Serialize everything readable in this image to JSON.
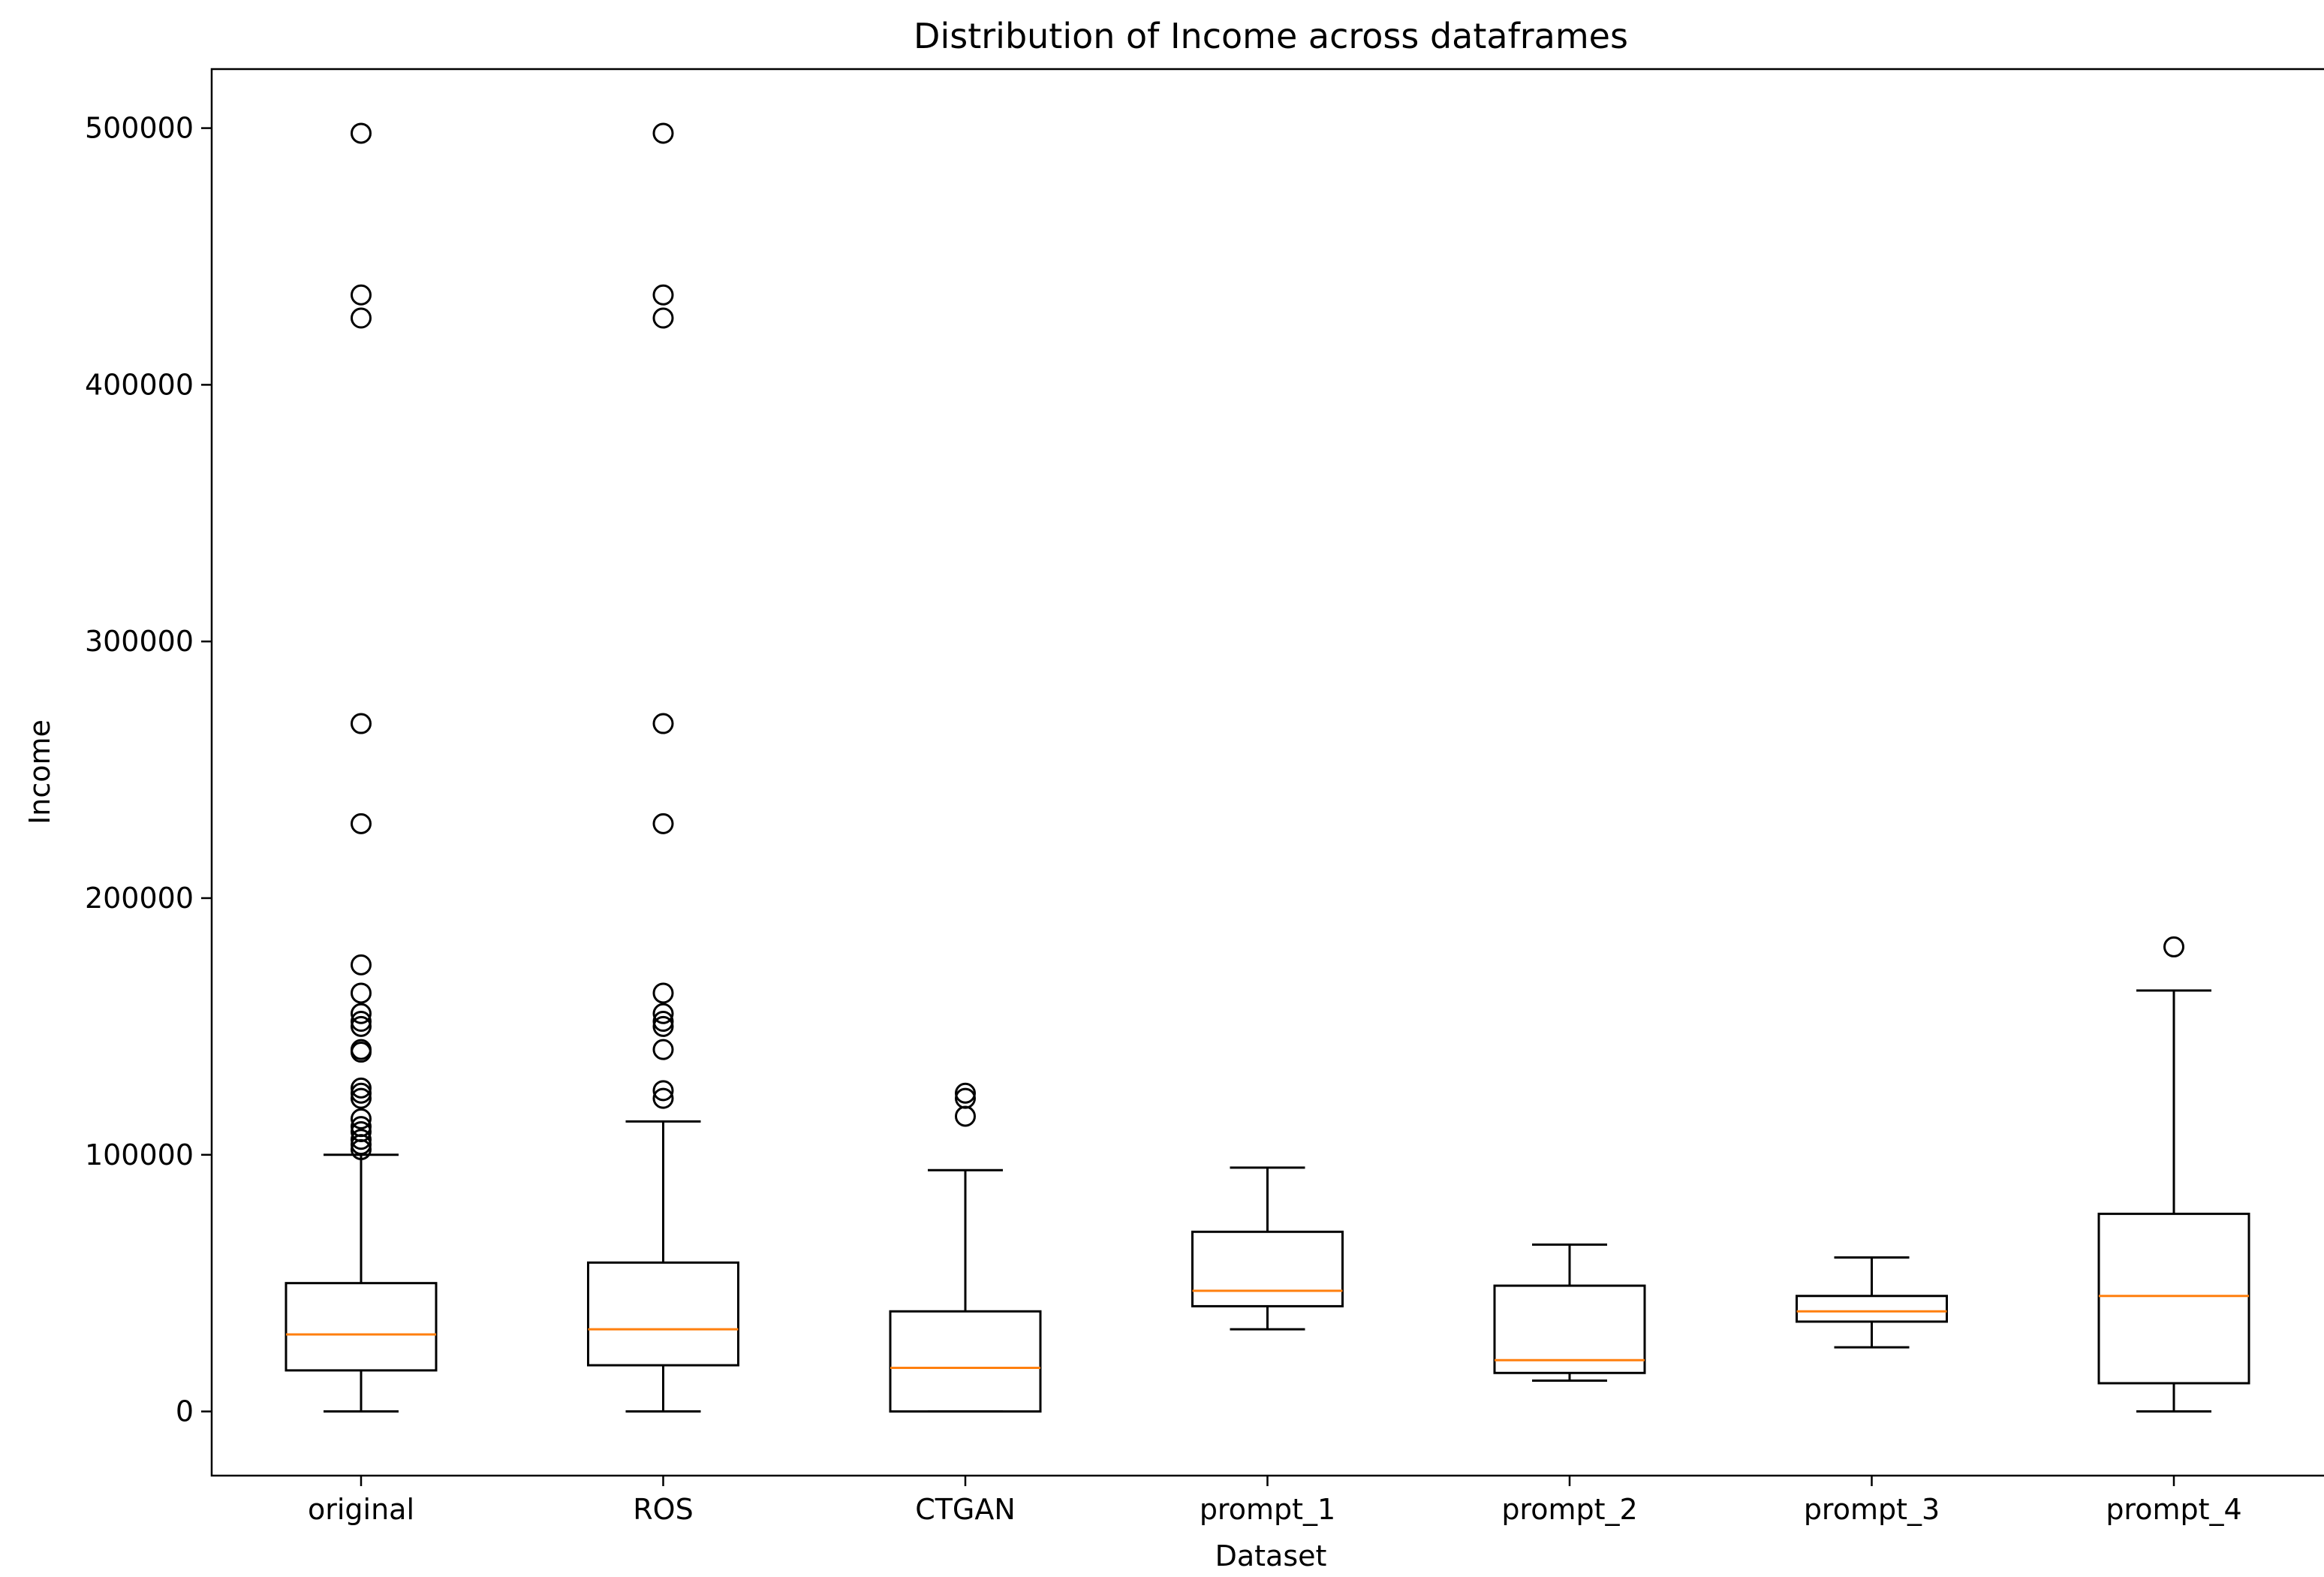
{
  "chart_data": {
    "type": "box",
    "title": "Distribution of Income across dataframes",
    "xlabel": "Dataset",
    "ylabel": "Income",
    "ylim": [
      -25000,
      523000
    ],
    "yticks": [
      0,
      100000,
      200000,
      300000,
      400000,
      500000
    ],
    "ytick_labels": [
      "0",
      "100000",
      "200000",
      "300000",
      "400000",
      "500000"
    ],
    "grid": false,
    "colors": {
      "box": "#000000",
      "median": "#ff7f0e"
    },
    "categories": [
      "original",
      "ROS",
      "CTGAN",
      "prompt_1",
      "prompt_2",
      "prompt_3",
      "prompt_4"
    ],
    "boxes": [
      {
        "label": "original",
        "whisker_low": 0,
        "q1": 16000,
        "median": 30000,
        "q3": 50000,
        "whisker_high": 100000,
        "outliers": [
          498000,
          435000,
          426000,
          268000,
          229000,
          174000,
          163000,
          155000,
          152000,
          150000,
          141000,
          140000,
          126000,
          124000,
          122000,
          114000,
          111000,
          109000,
          106000,
          104000,
          102000
        ]
      },
      {
        "label": "ROS",
        "whisker_low": 0,
        "q1": 18000,
        "median": 32000,
        "q3": 58000,
        "whisker_high": 113000,
        "outliers": [
          498000,
          435000,
          426000,
          268000,
          229000,
          163000,
          155000,
          152000,
          150000,
          141000,
          125000,
          122000
        ]
      },
      {
        "label": "CTGAN",
        "whisker_low": 0,
        "q1": 0,
        "median": 17000,
        "q3": 39000,
        "whisker_high": 94000,
        "outliers": [
          124000,
          122000,
          115000
        ]
      },
      {
        "label": "prompt_1",
        "whisker_low": 32000,
        "q1": 41000,
        "median": 47000,
        "q3": 70000,
        "whisker_high": 95000,
        "outliers": []
      },
      {
        "label": "prompt_2",
        "whisker_low": 12000,
        "q1": 15000,
        "median": 20000,
        "q3": 49000,
        "whisker_high": 65000,
        "outliers": []
      },
      {
        "label": "prompt_3",
        "whisker_low": 25000,
        "q1": 35000,
        "median": 39000,
        "q3": 45000,
        "whisker_high": 60000,
        "outliers": []
      },
      {
        "label": "prompt_4",
        "whisker_low": 0,
        "q1": 11000,
        "median": 45000,
        "q3": 77000,
        "whisker_high": 164000,
        "outliers": [
          181000
        ]
      }
    ]
  }
}
